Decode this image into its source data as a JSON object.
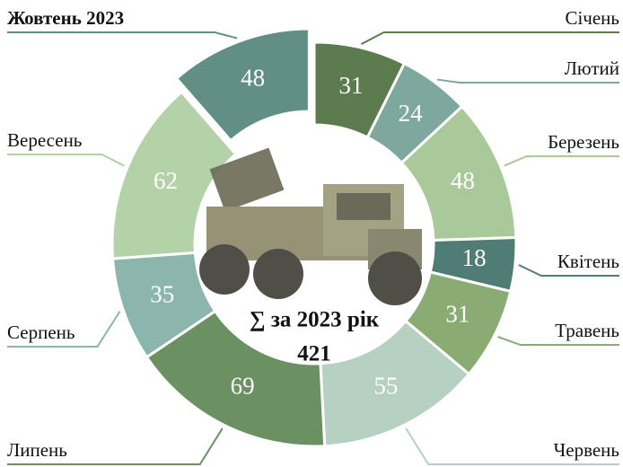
{
  "chart_data": {
    "type": "donut",
    "categories": [
      "Січень",
      "Лютий",
      "Березень",
      "Квітень",
      "Травень",
      "Червень",
      "Липень",
      "Серпень",
      "Вересень",
      "Жовтень 2023"
    ],
    "values": [
      31,
      24,
      48,
      18,
      31,
      55,
      69,
      35,
      62,
      48
    ],
    "colors": [
      "#5c7b4f",
      "#7ea79d",
      "#aac99b",
      "#4f7c74",
      "#8aac73",
      "#b6d0c1",
      "#6b9163",
      "#8cb6ad",
      "#b3d2a8",
      "#618f86"
    ],
    "center_label": "∑ за 2023 рік",
    "total": 421
  }
}
